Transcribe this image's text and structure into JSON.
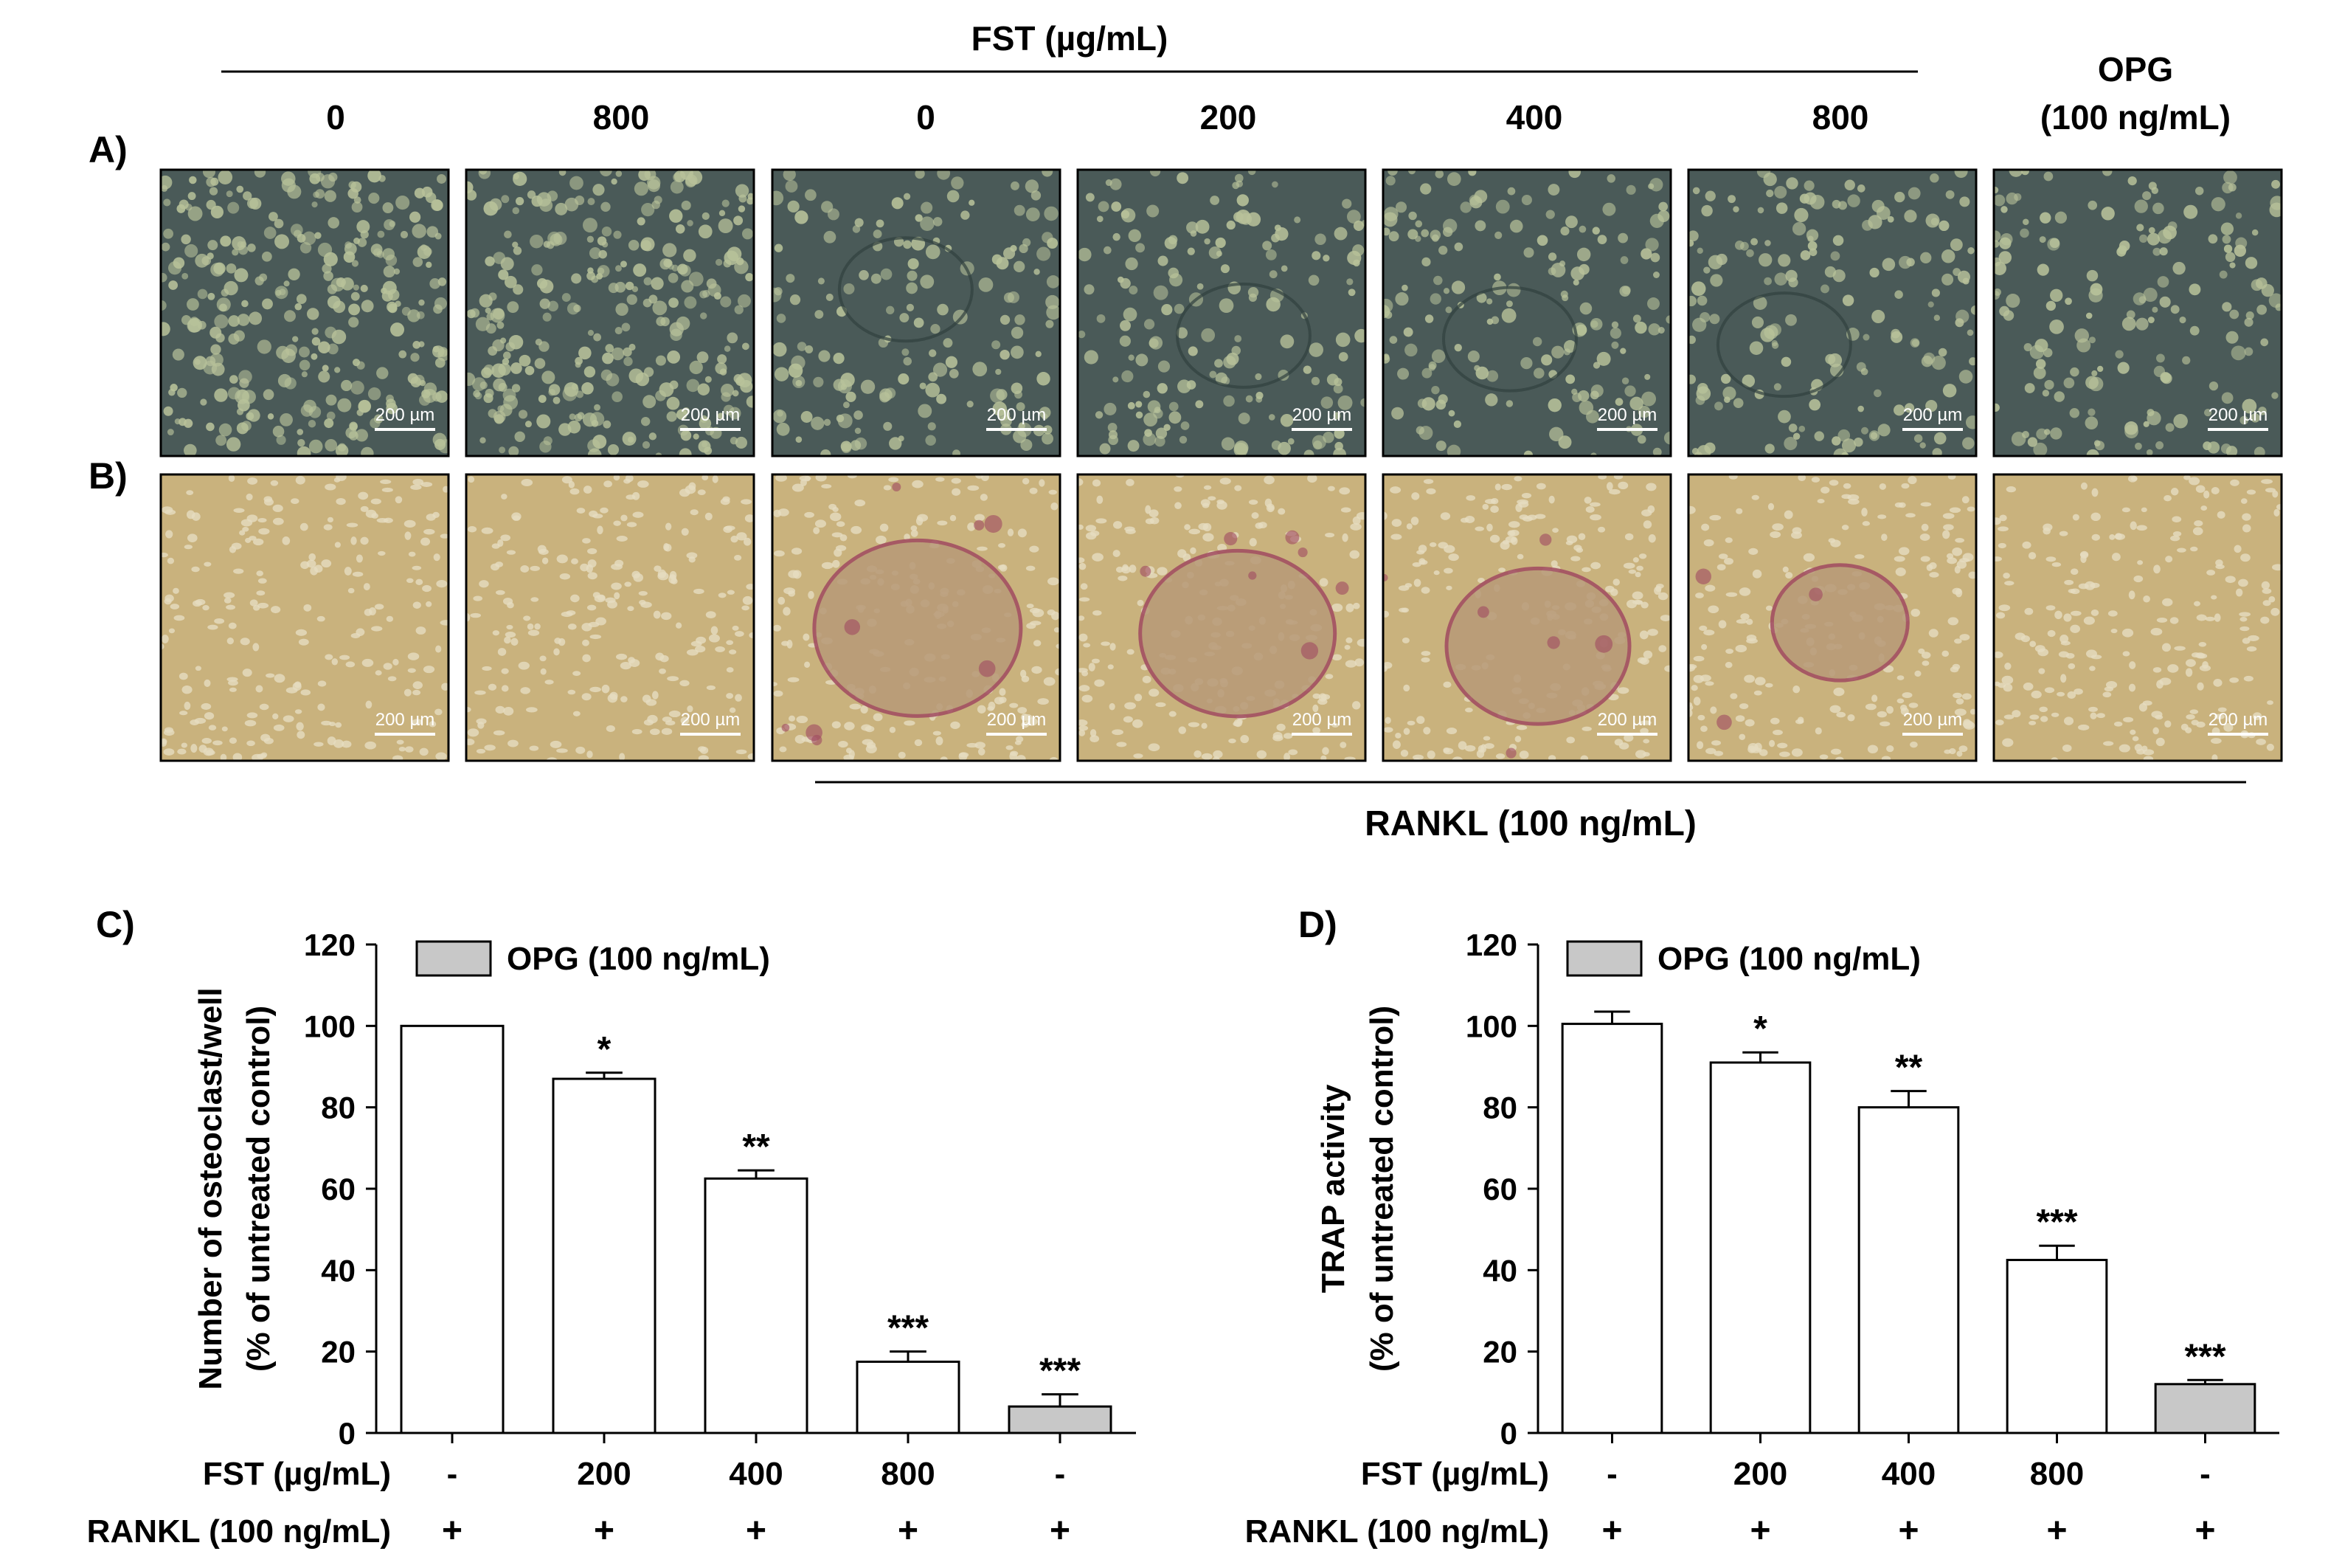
{
  "header": {
    "fst_title": "FST (µg/mL)",
    "fst_concentrations": [
      "0",
      "800",
      "0",
      "200",
      "400",
      "800"
    ],
    "opg_line1": "OPG",
    "opg_line2": "(100 ng/mL)",
    "rankl_label": "RANKL (100 ng/mL)"
  },
  "panels": {
    "a_label": "A)",
    "b_label": "B)",
    "c_label": "C)",
    "d_label": "D)",
    "scale_bar_text": "200 µm"
  },
  "micrographs": {
    "row_a": [
      {
        "condition": "control",
        "rankl": false
      },
      {
        "condition": "fst-800",
        "rankl": false
      },
      {
        "condition": "rankl",
        "rankl": true
      },
      {
        "condition": "fst-200-rankl",
        "rankl": true
      },
      {
        "condition": "fst-400-rankl",
        "rankl": true
      },
      {
        "condition": "fst-800-rankl",
        "rankl": true
      },
      {
        "condition": "opg-rankl",
        "rankl": true
      }
    ],
    "row_b": [
      {
        "condition": "control",
        "trap_stain": 0
      },
      {
        "condition": "fst-800",
        "trap_stain": 0
      },
      {
        "condition": "rankl",
        "trap_stain": 1
      },
      {
        "condition": "fst-200-rankl",
        "trap_stain": 0.9
      },
      {
        "condition": "fst-400-rankl",
        "trap_stain": 0.8
      },
      {
        "condition": "fst-800-rankl",
        "trap_stain": 0.4
      },
      {
        "condition": "opg-rankl",
        "trap_stain": 0.05
      }
    ],
    "colors": {
      "phase_bg": "#4a5a58",
      "phase_cell": "#b8c29a",
      "trap_bg": "#c9b27d",
      "trap_cell": "#e6dcc0",
      "trap_stain": "#a04a60"
    }
  },
  "chart_data": [
    {
      "type": "bar",
      "panel": "C)",
      "ylabel_line1": "Number of osteoclast/well",
      "ylabel_line2": "(% of untreated control)",
      "ylim": [
        0,
        120
      ],
      "yticks": [
        0,
        20,
        40,
        60,
        80,
        100,
        120
      ],
      "row_labels": [
        "FST (µg/mL)",
        "RANKL (100 ng/mL)"
      ],
      "fst": [
        "-",
        "200",
        "400",
        "800",
        "-"
      ],
      "rankl": [
        "+",
        "+",
        "+",
        "+",
        "+"
      ],
      "values": [
        100,
        87,
        62.5,
        17.5,
        6.5
      ],
      "errors": [
        0,
        1.5,
        2,
        2.5,
        3
      ],
      "significance": [
        "",
        "*",
        "**",
        "***",
        "***"
      ],
      "fill": [
        "#ffffff",
        "#ffffff",
        "#ffffff",
        "#ffffff",
        "#c8c8c8"
      ],
      "legend": "OPG (100 ng/mL)",
      "legend_color": "#c8c8c8"
    },
    {
      "type": "bar",
      "panel": "D)",
      "ylabel_line1": "TRAP activity",
      "ylabel_line2": "(% of untreated control)",
      "ylim": [
        0,
        120
      ],
      "yticks": [
        0,
        20,
        40,
        60,
        80,
        100,
        120
      ],
      "row_labels": [
        "FST (µg/mL)",
        "RANKL (100 ng/mL)"
      ],
      "fst": [
        "-",
        "200",
        "400",
        "800",
        "-"
      ],
      "rankl": [
        "+",
        "+",
        "+",
        "+",
        "+"
      ],
      "values": [
        100.5,
        91,
        80,
        42.5,
        12
      ],
      "errors": [
        3,
        2.5,
        4,
        3.5,
        1
      ],
      "significance": [
        "",
        "*",
        "**",
        "***",
        "***"
      ],
      "fill": [
        "#ffffff",
        "#ffffff",
        "#ffffff",
        "#ffffff",
        "#c8c8c8"
      ],
      "legend": "OPG (100 ng/mL)",
      "legend_color": "#c8c8c8"
    }
  ]
}
